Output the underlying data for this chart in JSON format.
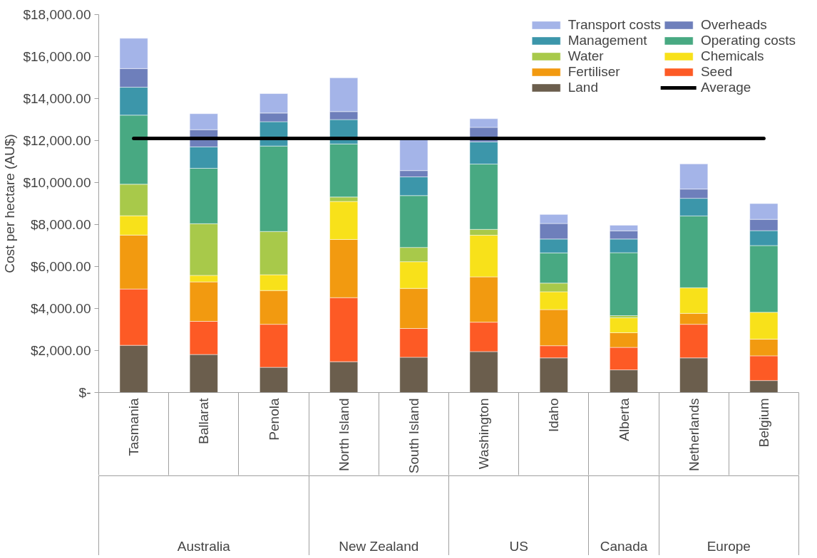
{
  "chart_data": {
    "type": "bar",
    "stacked": true,
    "ylabel": "Cost per hectare (AU$)",
    "categories": [
      "Tasmania",
      "Ballarat",
      "Penola",
      "North Island",
      "South Island",
      "Washington",
      "Idaho",
      "Alberta",
      "Netherlands",
      "Belgium"
    ],
    "annotations": [
      "Australia",
      "New Zealand",
      "US",
      "Canada",
      "Europe"
    ],
    "series": [
      {
        "name": "Land",
        "color": "#6b5e4d",
        "values": [
          2250,
          1810,
          1200,
          1470,
          1680,
          1950,
          1650,
          1080,
          1650,
          570
        ]
      },
      {
        "name": "Seed",
        "color": "#fd5a25",
        "values": [
          2680,
          1580,
          2050,
          3050,
          1370,
          1400,
          580,
          1070,
          1600,
          1180
        ]
      },
      {
        "name": "Fertiliser",
        "color": "#f29a10",
        "values": [
          2570,
          1880,
          1610,
          2770,
          1910,
          2160,
          1720,
          700,
          520,
          790
        ]
      },
      {
        "name": "Chemicals",
        "color": "#f8e11a",
        "values": [
          920,
          310,
          750,
          1810,
          1270,
          1980,
          850,
          710,
          1220,
          1280
        ]
      },
      {
        "name": "Water",
        "color": "#a8c94a",
        "values": [
          1500,
          2460,
          2060,
          210,
          680,
          280,
          410,
          100,
          null,
          null
        ]
      },
      {
        "name": "Operating costs",
        "color": "#48a982",
        "values": [
          3290,
          2640,
          4070,
          2530,
          2470,
          3110,
          1440,
          3000,
          3420,
          3180
        ]
      },
      {
        "name": "Management",
        "color": "#3c96aa",
        "values": [
          1330,
          1020,
          1160,
          1160,
          890,
          1060,
          660,
          650,
          840,
          710
        ]
      },
      {
        "name": "Overheads",
        "color": "#6e7fbb",
        "values": [
          890,
          820,
          410,
          380,
          300,
          690,
          740,
          390,
          440,
          540
        ]
      },
      {
        "name": "Transport costs",
        "color": "#a4b4e8",
        "values": [
          1440,
          760,
          930,
          1610,
          1480,
          410,
          430,
          270,
          1200,
          750
        ]
      },
      {
        "name": "Average",
        "type": "line",
        "color": "#000000",
        "values": [
          12100,
          12100,
          12100,
          12100,
          12100,
          12100,
          12100,
          12100,
          12100,
          12100
        ]
      }
    ],
    "ylim": [
      0,
      18000
    ],
    "yticks": [
      {
        "value": 0,
        "label": "$-"
      },
      {
        "value": 2000,
        "label": "$2,000.00"
      },
      {
        "value": 4000,
        "label": "$4,000.00"
      },
      {
        "value": 6000,
        "label": "$6,000.00"
      },
      {
        "value": 8000,
        "label": "$8,000.00"
      },
      {
        "value": 10000,
        "label": "$10,000.00"
      },
      {
        "value": 12000,
        "label": "$12,000.00"
      },
      {
        "value": 14000,
        "label": "$14,000.00"
      },
      {
        "value": 16000,
        "label": "$16,000.00"
      },
      {
        "value": 18000,
        "label": "$18,000.00"
      }
    ],
    "grid": false,
    "legend": "top right"
  }
}
